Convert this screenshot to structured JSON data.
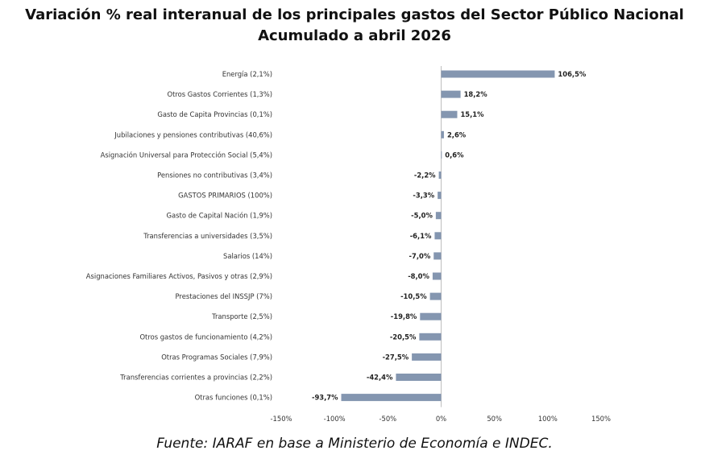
{
  "title_line1": "Variación % real interanual de los principales gastos del Sector Público Nacional",
  "title_line2": "Acumulado a abril 2026",
  "source": "Fuente: IARAF en base a Ministerio de Economía e INDEC.",
  "colors": {
    "bar": "#8496b0",
    "axis": "#bfbfbf"
  },
  "chart_data": {
    "type": "bar",
    "orientation": "horizontal",
    "title": "Variación % real interanual de los principales gastos del Sector Público Nacional",
    "subtitle": "Acumulado a abril 2026",
    "categories": [
      "Energía (2,1%)",
      "Otros Gastos Corrientes      (1,3%)",
      "Gasto de Capita Provincias (0,1%)",
      "Jubilaciones y pensiones contributivas (40,6%)",
      "Asignación Universal para Protección Social (5,4%)",
      "Pensiones no contributivas (3,4%)",
      "GASTOS PRIMARIOS (100%)",
      "Gasto de Capital Nación (1,9%)",
      "Transferencias a universidades (3,5%)",
      "Salarios (14%)",
      "Asignaciones Familiares Activos, Pasivos y otras (2,9%)",
      "Prestaciones del INSSJP (7%)",
      "Transporte (2,5%)",
      "Otros gastos de funcionamiento (4,2%)",
      "Otras Programas Sociales (7,9%)",
      "Transferencias corrientes a provincias (2,2%)",
      "Otras funciones (0,1%)"
    ],
    "values": [
      106.5,
      18.2,
      15.1,
      2.6,
      0.6,
      -2.2,
      -3.3,
      -5.0,
      -6.1,
      -7.0,
      -8.0,
      -10.5,
      -19.8,
      -20.5,
      -27.5,
      -42.4,
      -93.7
    ],
    "value_labels": [
      "106,5%",
      "18,2%",
      "15,1%",
      "2,6%",
      "0,6%",
      "-2,2%",
      "-3,3%",
      "-5,0%",
      "-6,1%",
      "-7,0%",
      "-8,0%",
      "-10,5%",
      "-19,8%",
      "-20,5%",
      "-27,5%",
      "-42,4%",
      "-93,7%"
    ],
    "xlim": [
      -150,
      150
    ],
    "ticks": [
      -150,
      -100,
      -50,
      0,
      50,
      100,
      150
    ],
    "tick_labels": [
      "-150%",
      "-100%",
      "-50%",
      "0%",
      "50%",
      "100%",
      "150%"
    ],
    "grid": false,
    "legend": "none"
  }
}
